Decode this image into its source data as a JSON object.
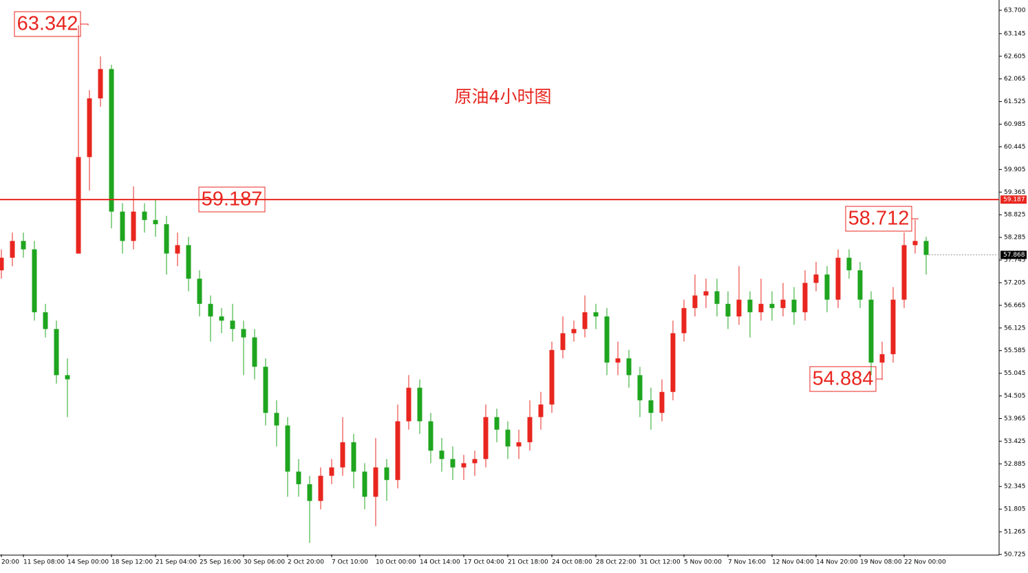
{
  "chart_data": {
    "type": "candlestick",
    "title": "原油4小时图",
    "categories": [
      "20:00",
      null,
      "11 Sep 08:00",
      null,
      null,
      null,
      "14 Sep 00:00",
      null,
      null,
      null,
      "18 Sep 12:00",
      null,
      null,
      null,
      "21 Sep 04:00",
      null,
      null,
      null,
      "25 Sep 16:00",
      null,
      null,
      null,
      "30 Sep 06:00",
      null,
      null,
      null,
      "2 Oct 20:00",
      null,
      null,
      null,
      "7 Oct 10:00",
      null,
      null,
      null,
      "10 Oct 00:00",
      null,
      null,
      null,
      "14 Oct 14:00",
      null,
      null,
      null,
      "17 Oct 04:00",
      null,
      null,
      null,
      "21 Oct 18:00",
      null,
      null,
      null,
      "24 Oct 08:00",
      null,
      null,
      null,
      "28 Oct 22:00",
      null,
      null,
      null,
      "31 Oct 12:00",
      null,
      null,
      null,
      "5 Nov 00:00",
      null,
      null,
      null,
      "7 Nov 16:00",
      null,
      null,
      null,
      "12 Nov 04:00",
      null,
      null,
      null,
      "14 Nov 20:00",
      null,
      null,
      null,
      "19 Nov 08:00",
      null,
      null,
      null,
      "22 Nov 00:00",
      null,
      null
    ],
    "open": [
      57.5,
      57.8,
      58.2,
      58.0,
      56.5,
      56.1,
      55.0,
      57.9,
      60.2,
      61.6,
      62.3,
      58.9,
      58.2,
      58.9,
      58.7,
      58.6,
      57.9,
      58.1,
      57.3,
      56.7,
      56.4,
      56.3,
      56.1,
      55.9,
      55.2,
      54.1,
      53.8,
      52.7,
      52.4,
      52.0,
      52.6,
      52.8,
      53.4,
      52.7,
      52.1,
      52.8,
      52.5,
      53.9,
      54.7,
      53.9,
      53.2,
      53.0,
      52.8,
      52.9,
      53.0,
      54.0,
      53.7,
      53.3,
      53.4,
      54.0,
      54.3,
      55.6,
      56.0,
      56.1,
      56.5,
      56.4,
      55.3,
      55.4,
      55.0,
      54.4,
      54.1,
      54.6,
      56.0,
      56.6,
      56.9,
      57.0,
      56.7,
      56.4,
      56.8,
      56.5,
      56.7,
      56.6,
      56.8,
      56.5,
      57.2,
      57.4,
      56.8,
      57.8,
      57.5,
      56.8,
      55.3,
      55.5,
      56.8,
      58.1,
      58.2
    ],
    "high": [
      58.0,
      58.4,
      58.4,
      58.2,
      56.7,
      56.3,
      55.4,
      63.342,
      61.8,
      62.6,
      62.4,
      59.1,
      59.5,
      59.1,
      59.2,
      58.8,
      58.4,
      58.3,
      57.5,
      56.9,
      56.6,
      56.7,
      56.3,
      56.1,
      55.4,
      54.4,
      54.0,
      53.0,
      52.6,
      52.8,
      53.0,
      54.0,
      53.6,
      52.9,
      53.5,
      53.0,
      54.3,
      55.0,
      54.9,
      54.1,
      53.5,
      53.3,
      53.1,
      53.2,
      54.3,
      54.2,
      53.9,
      53.7,
      54.4,
      54.6,
      55.8,
      56.4,
      56.3,
      56.9,
      56.7,
      56.6,
      55.8,
      55.6,
      55.2,
      54.7,
      54.9,
      56.3,
      56.8,
      57.4,
      57.3,
      57.3,
      57.0,
      57.6,
      57.0,
      57.3,
      57.0,
      57.2,
      57.1,
      57.5,
      57.7,
      57.6,
      58.0,
      58.0,
      57.7,
      57.0,
      55.8,
      57.1,
      58.4,
      58.712,
      58.3
    ],
    "low": [
      57.3,
      57.6,
      57.8,
      56.3,
      55.9,
      54.8,
      54.0,
      57.9,
      59.4,
      61.4,
      58.5,
      57.9,
      58.0,
      58.4,
      58.3,
      57.4,
      57.6,
      57.0,
      56.4,
      55.8,
      56.0,
      55.8,
      55.0,
      54.9,
      53.8,
      53.3,
      52.1,
      52.1,
      51.0,
      51.8,
      52.4,
      52.6,
      52.3,
      51.8,
      51.4,
      52.0,
      52.3,
      53.7,
      53.6,
      52.9,
      52.7,
      52.5,
      52.5,
      52.6,
      52.8,
      53.4,
      53.0,
      53.0,
      53.2,
      53.7,
      54.1,
      55.4,
      55.8,
      55.9,
      56.1,
      55.0,
      55.0,
      54.7,
      54.0,
      53.7,
      53.9,
      54.4,
      55.8,
      56.4,
      56.6,
      56.4,
      56.1,
      56.2,
      55.9,
      56.3,
      56.3,
      56.4,
      56.2,
      56.3,
      57.0,
      56.5,
      56.6,
      57.3,
      56.6,
      55.0,
      54.884,
      55.3,
      56.6,
      57.9,
      57.4
    ],
    "close": [
      57.8,
      58.2,
      58.0,
      56.5,
      56.1,
      55.0,
      54.9,
      60.2,
      61.6,
      62.3,
      58.9,
      58.2,
      58.9,
      58.7,
      58.6,
      57.9,
      58.1,
      57.3,
      56.7,
      56.4,
      56.3,
      56.1,
      55.9,
      55.2,
      54.1,
      53.8,
      52.7,
      52.4,
      52.0,
      52.6,
      52.8,
      53.4,
      52.7,
      52.1,
      52.8,
      52.5,
      53.9,
      54.7,
      53.9,
      53.2,
      53.0,
      52.8,
      52.9,
      53.0,
      54.0,
      53.7,
      53.3,
      53.4,
      54.0,
      54.3,
      55.6,
      56.0,
      56.1,
      56.5,
      56.4,
      55.3,
      55.4,
      55.0,
      54.4,
      54.1,
      54.6,
      56.0,
      56.6,
      56.9,
      57.0,
      56.7,
      56.4,
      56.8,
      56.5,
      56.7,
      56.6,
      56.8,
      56.5,
      57.2,
      57.4,
      56.8,
      57.8,
      57.5,
      56.8,
      55.3,
      55.5,
      56.8,
      58.1,
      58.2,
      57.868
    ],
    "up_color": "#e8261f",
    "down_color": "#1fa51f",
    "ylim": [
      50.725,
      63.7
    ],
    "yticks": [
      {
        "value": 63.7,
        "label": "63.700"
      },
      63.145,
      62.605,
      62.065,
      61.525,
      60.985,
      60.445,
      59.905,
      59.365,
      58.825,
      58.285,
      57.745,
      57.205,
      56.665,
      56.125,
      55.585,
      55.045,
      54.505,
      53.965,
      53.425,
      52.885,
      52.345,
      51.805,
      51.265,
      50.725
    ],
    "hline": {
      "value": 59.187,
      "color": "#e8261f"
    },
    "price_labels": [
      63.342,
      58.712,
      54.884
    ]
  }
}
